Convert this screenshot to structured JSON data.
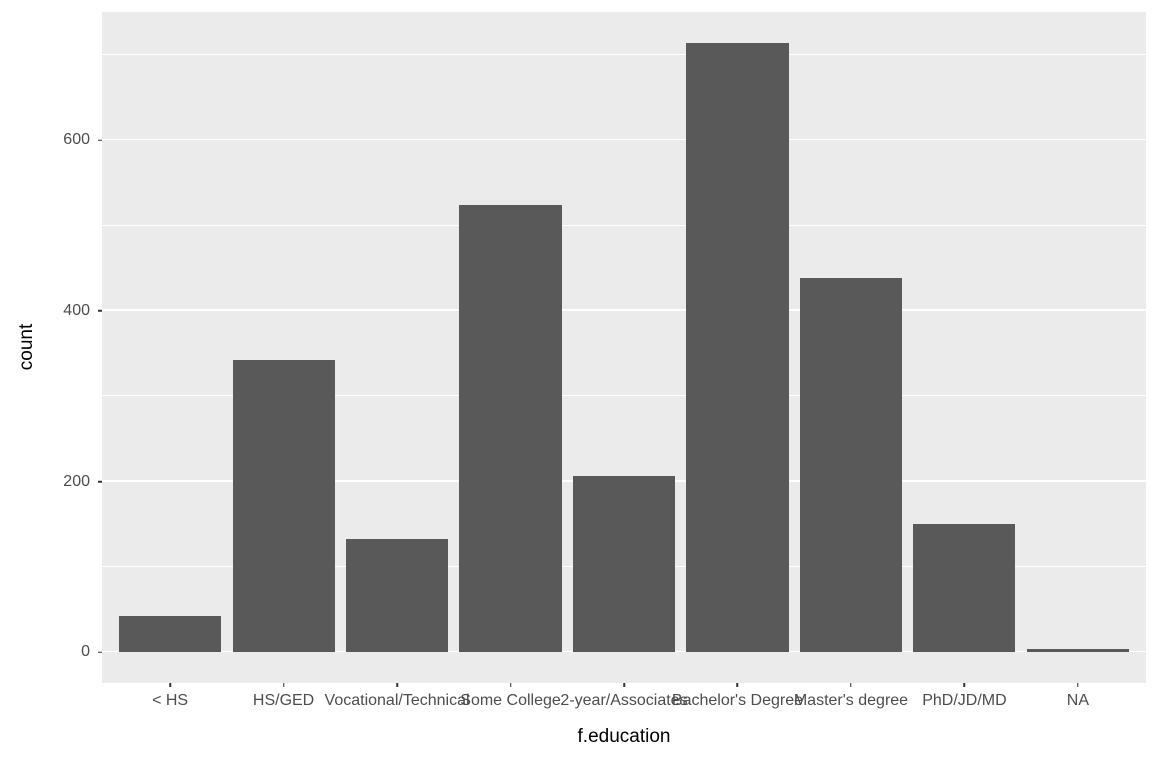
{
  "chart_data": {
    "type": "bar",
    "title": "",
    "xlabel": "f.education",
    "ylabel": "count",
    "categories": [
      "< HS",
      "HS/GED",
      "Vocational/Technical",
      "Some College",
      "2-year/Associates",
      "Bachelor's Degree",
      "Master's degree",
      "PhD/JD/MD",
      "NA"
    ],
    "values": [
      42,
      342,
      133,
      524,
      207,
      714,
      438,
      150,
      4
    ],
    "ylim": [
      0,
      714
    ],
    "y_expanded": [
      -36,
      750
    ],
    "yticks": [
      0,
      200,
      400,
      600
    ],
    "yticks_minor": [
      100,
      300,
      500,
      700
    ],
    "x_expand": 0.6,
    "bar_width": 0.9,
    "grid": true,
    "legend": "none",
    "colors": {
      "bar": "#595959",
      "panel_bg": "#EBEBEB",
      "grid": "#FFFFFF",
      "tick_label": "#4D4D4D",
      "axis_title": "#000000",
      "tick_mark": "#333333",
      "background": "#FFFFFF"
    }
  }
}
